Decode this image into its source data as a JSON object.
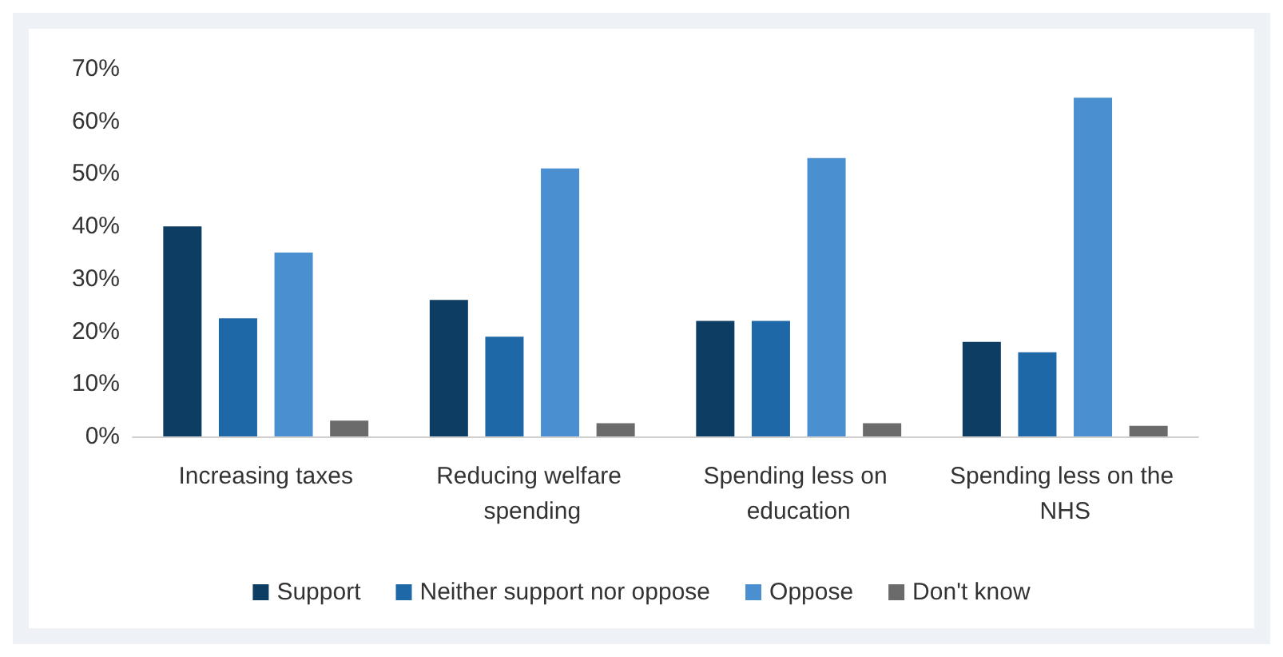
{
  "chart_data": {
    "type": "bar",
    "categories": [
      "Increasing taxes",
      "Reducing welfare spending",
      "Spending less on education",
      "Spending less on the NHS"
    ],
    "series": [
      {
        "name": "Support",
        "color": "#0e3d63",
        "values": [
          40,
          26,
          22,
          18
        ]
      },
      {
        "name": "Neither support nor oppose",
        "color": "#1f68a8",
        "values": [
          22.5,
          19,
          22,
          16
        ]
      },
      {
        "name": "Oppose",
        "color": "#4a90d0",
        "values": [
          35,
          51,
          53,
          64.5
        ]
      },
      {
        "name": "Don't know",
        "color": "#6b6b6b",
        "values": [
          3,
          2.5,
          2.5,
          2
        ]
      }
    ],
    "ylim": [
      0,
      70
    ],
    "yticks": [
      {
        "value": 0,
        "label": "0%"
      },
      {
        "value": 10,
        "label": "10%"
      },
      {
        "value": 20,
        "label": "20%"
      },
      {
        "value": 30,
        "label": "30%"
      },
      {
        "value": 40,
        "label": "40%"
      },
      {
        "value": 50,
        "label": "50%"
      },
      {
        "value": 60,
        "label": "60%"
      },
      {
        "value": 70,
        "label": "70%"
      }
    ],
    "grid": false,
    "legend": "bottom"
  }
}
